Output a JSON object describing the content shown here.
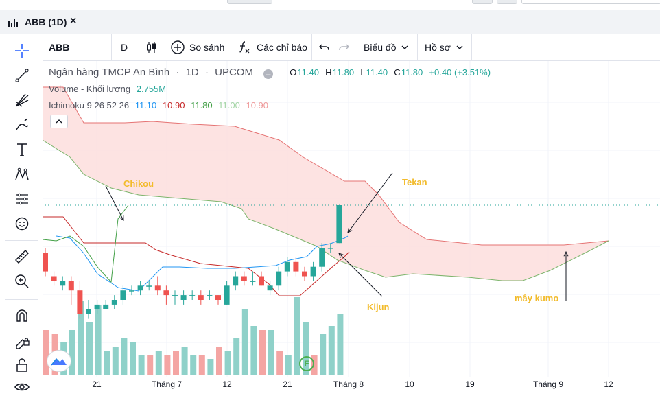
{
  "tab": {
    "title": "ABB (1D)",
    "close": "×"
  },
  "toolbar": {
    "symbol": "ABB",
    "interval": "D",
    "compare": "So sánh",
    "indicators": "Các chỉ báo",
    "chart_type": "Biểu đồ",
    "profile": "Hồ sơ"
  },
  "legend": {
    "name": "Ngân hàng TMCP An Bình",
    "interval": "1D",
    "exchange": "UPCOM",
    "sep": "·",
    "o_label": "O",
    "o_value": "11.40",
    "h_label": "H",
    "h_value": "11.80",
    "l_label": "L",
    "l_value": "11.40",
    "c_label": "C",
    "c_value": "11.80",
    "change": "+0.40 (+3.51%)",
    "volume_label": "Volume - Khối lượng",
    "volume_value": "2.755M",
    "ichimoku_label": "Ichimoku 9 26 52 26",
    "ichi_values": [
      "11.10",
      "10.90",
      "11.80",
      "11.00",
      "10.90"
    ]
  },
  "colors": {
    "up": "#26a69a",
    "down": "#ef5350",
    "up_vol": "#8fd1c9",
    "down_vol": "#f4a5a3",
    "tenkan": "#2196f3",
    "kijun": "#c62828",
    "chikou": "#43a047",
    "span_a": "#7cb46b",
    "span_b": "#e57373",
    "cloud": "#fde0df",
    "annot": "#f2bb2b"
  },
  "annotations": {
    "chikou": "Chikou",
    "tekan": "Tekan",
    "kijun": "Kijun",
    "kumo": "mây kumo"
  },
  "xaxis": [
    "21",
    "Tháng 7",
    "12",
    "21",
    "Tháng 8",
    "10",
    "19",
    "Tháng 9",
    "12"
  ],
  "badge": "F",
  "chart_data": {
    "type": "candlestick",
    "y_range": [
      10.0,
      12.1
    ],
    "candles": [
      {
        "o": 11.3,
        "h": 11.35,
        "l": 11.05,
        "c": 11.1
      },
      {
        "o": 11.05,
        "h": 11.1,
        "l": 10.95,
        "c": 11.0
      },
      {
        "o": 10.95,
        "h": 11.05,
        "l": 10.9,
        "c": 11.0
      },
      {
        "o": 11.0,
        "h": 11.05,
        "l": 10.75,
        "c": 10.9
      },
      {
        "o": 10.9,
        "h": 11.0,
        "l": 10.6,
        "c": 10.65
      },
      {
        "o": 10.65,
        "h": 10.8,
        "l": 10.6,
        "c": 10.7
      },
      {
        "o": 10.7,
        "h": 10.8,
        "l": 10.65,
        "c": 10.75
      },
      {
        "o": 10.7,
        "h": 10.8,
        "l": 10.7,
        "c": 10.75
      },
      {
        "o": 10.75,
        "h": 10.85,
        "l": 10.7,
        "c": 10.8
      },
      {
        "o": 10.8,
        "h": 10.95,
        "l": 10.75,
        "c": 10.9
      },
      {
        "o": 10.9,
        "h": 10.95,
        "l": 10.85,
        "c": 10.9
      },
      {
        "o": 10.9,
        "h": 11.0,
        "l": 10.85,
        "c": 10.95
      },
      {
        "o": 10.95,
        "h": 11.0,
        "l": 10.9,
        "c": 10.95
      },
      {
        "o": 10.95,
        "h": 11.05,
        "l": 10.85,
        "c": 10.9
      },
      {
        "o": 10.9,
        "h": 10.95,
        "l": 10.75,
        "c": 10.85
      },
      {
        "o": 10.85,
        "h": 10.9,
        "l": 10.75,
        "c": 10.85
      },
      {
        "o": 10.8,
        "h": 10.9,
        "l": 10.75,
        "c": 10.85
      },
      {
        "o": 10.85,
        "h": 10.9,
        "l": 10.8,
        "c": 10.85
      },
      {
        "o": 10.85,
        "h": 10.9,
        "l": 10.75,
        "c": 10.8
      },
      {
        "o": 10.85,
        "h": 10.9,
        "l": 10.8,
        "c": 10.85
      },
      {
        "o": 10.85,
        "h": 10.85,
        "l": 10.75,
        "c": 10.8
      },
      {
        "o": 10.75,
        "h": 11.0,
        "l": 10.75,
        "c": 10.95
      },
      {
        "o": 10.95,
        "h": 11.1,
        "l": 10.9,
        "c": 11.05
      },
      {
        "o": 11.05,
        "h": 11.1,
        "l": 10.95,
        "c": 11.0
      },
      {
        "o": 11.0,
        "h": 11.1,
        "l": 10.95,
        "c": 11.0
      },
      {
        "o": 11.05,
        "h": 11.1,
        "l": 10.95,
        "c": 10.95
      },
      {
        "o": 10.9,
        "h": 11.0,
        "l": 10.85,
        "c": 10.95
      },
      {
        "o": 10.95,
        "h": 11.15,
        "l": 10.9,
        "c": 11.1
      },
      {
        "o": 11.1,
        "h": 11.25,
        "l": 11.05,
        "c": 11.2
      },
      {
        "o": 11.2,
        "h": 11.25,
        "l": 11.05,
        "c": 11.1
      },
      {
        "o": 11.1,
        "h": 11.15,
        "l": 11.0,
        "c": 11.05
      },
      {
        "o": 11.05,
        "h": 11.2,
        "l": 11.0,
        "c": 11.15
      },
      {
        "o": 11.15,
        "h": 11.4,
        "l": 11.1,
        "c": 11.35
      },
      {
        "o": 11.35,
        "h": 11.4,
        "l": 11.3,
        "c": 11.35
      },
      {
        "o": 11.4,
        "h": 11.8,
        "l": 11.4,
        "c": 11.8
      }
    ],
    "volume": [
      {
        "v": 0.55,
        "up": false
      },
      {
        "v": 0.5,
        "up": false
      },
      {
        "v": 0.4,
        "up": true
      },
      {
        "v": 0.55,
        "up": true
      },
      {
        "v": 0.9,
        "up": true
      },
      {
        "v": 0.65,
        "up": true
      },
      {
        "v": 0.85,
        "up": true
      },
      {
        "v": 0.3,
        "up": true
      },
      {
        "v": 0.35,
        "up": true
      },
      {
        "v": 0.45,
        "up": true
      },
      {
        "v": 0.4,
        "up": true
      },
      {
        "v": 0.25,
        "up": true
      },
      {
        "v": 0.25,
        "up": false
      },
      {
        "v": 0.3,
        "up": true
      },
      {
        "v": 0.25,
        "up": false
      },
      {
        "v": 0.3,
        "up": false
      },
      {
        "v": 0.35,
        "up": true
      },
      {
        "v": 0.25,
        "up": true
      },
      {
        "v": 0.25,
        "up": false
      },
      {
        "v": 0.2,
        "up": true
      },
      {
        "v": 0.35,
        "up": false
      },
      {
        "v": 0.3,
        "up": true
      },
      {
        "v": 0.45,
        "up": true
      },
      {
        "v": 0.8,
        "up": true
      },
      {
        "v": 0.6,
        "up": true
      },
      {
        "v": 0.55,
        "up": false
      },
      {
        "v": 0.55,
        "up": true
      },
      {
        "v": 0.3,
        "up": false
      },
      {
        "v": 0.25,
        "up": true
      },
      {
        "v": 0.95,
        "up": true
      },
      {
        "v": 0.65,
        "up": true
      },
      {
        "v": 0.25,
        "up": false
      },
      {
        "v": 0.5,
        "up": true
      },
      {
        "v": 0.6,
        "up": true
      },
      {
        "v": 0.75,
        "up": true
      }
    ]
  }
}
